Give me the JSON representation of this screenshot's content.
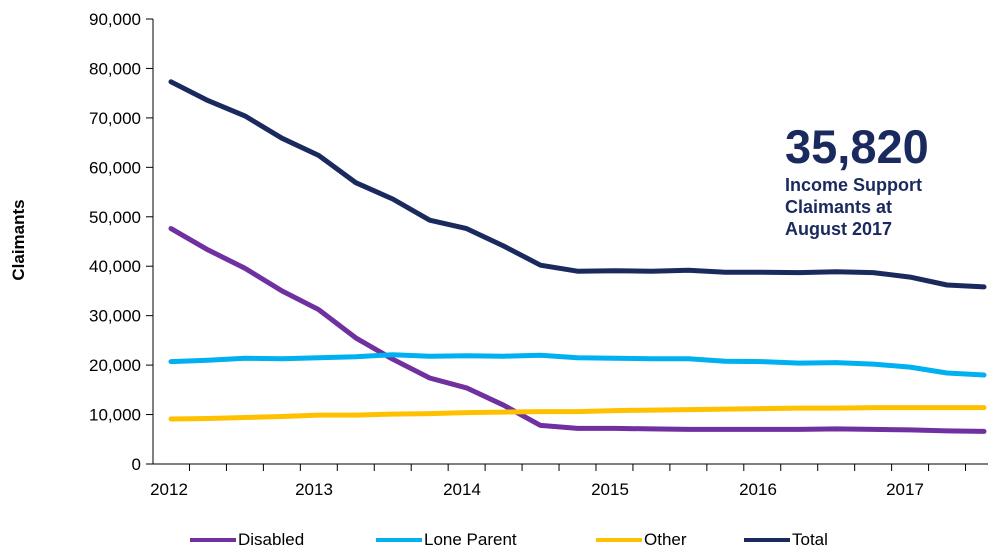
{
  "chart_data": {
    "type": "line",
    "ylabel": "Claimants",
    "xlabel": "",
    "ylim": [
      0,
      90000
    ],
    "y_ticks": [
      "0",
      "10,000",
      "20,000",
      "30,000",
      "40,000",
      "50,000",
      "60,000",
      "70,000",
      "80,000",
      "90,000"
    ],
    "y_tick_values": [
      0,
      10000,
      20000,
      30000,
      40000,
      50000,
      60000,
      70000,
      80000,
      90000
    ],
    "x_tick_labels": [
      "2012",
      "2013",
      "2014",
      "2015",
      "2016",
      "2017"
    ],
    "x": [
      "2012 Feb",
      "2012 May",
      "2012 Aug",
      "2012 Nov",
      "2013 Feb",
      "2013 May",
      "2013 Aug",
      "2013 Nov",
      "2014 Feb",
      "2014 May",
      "2014 Aug",
      "2014 Nov",
      "2015 Feb",
      "2015 May",
      "2015 Aug",
      "2015 Nov",
      "2016 Feb",
      "2016 May",
      "2016 Aug",
      "2016 Nov",
      "2017 Feb",
      "2017 May",
      "2017 Aug"
    ],
    "series": [
      {
        "name": "Disabled",
        "color": "#7030a0",
        "values": [
          47600,
          43300,
          39600,
          35000,
          31200,
          25500,
          21200,
          17400,
          15400,
          11900,
          7800,
          7200,
          7200,
          7100,
          7000,
          7000,
          7000,
          7000,
          7100,
          7000,
          6900,
          6700,
          6600
        ]
      },
      {
        "name": "Lone Parent",
        "color": "#00b0f0",
        "values": [
          20700,
          21000,
          21400,
          21300,
          21500,
          21700,
          22100,
          21800,
          21900,
          21800,
          22000,
          21500,
          21400,
          21300,
          21300,
          20800,
          20700,
          20400,
          20500,
          20200,
          19600,
          18400,
          18000
        ]
      },
      {
        "name": "Other",
        "color": "#ffc000",
        "values": [
          9100,
          9200,
          9400,
          9600,
          9900,
          9900,
          10100,
          10200,
          10400,
          10500,
          10600,
          10600,
          10800,
          10900,
          11000,
          11100,
          11200,
          11300,
          11300,
          11400,
          11400,
          11400,
          11400
        ]
      },
      {
        "name": "Total",
        "color": "#1b2a5e",
        "values": [
          77300,
          73500,
          70400,
          65900,
          62400,
          56900,
          53600,
          49300,
          47600,
          44100,
          40200,
          39000,
          39100,
          39000,
          39200,
          38800,
          38800,
          38700,
          38900,
          38700,
          37800,
          36200,
          35820
        ]
      }
    ],
    "legend_position": "bottom",
    "grid": false,
    "annotation": {
      "value": "35,820",
      "lines": [
        "Income Support",
        "Claimants at",
        "August 2017"
      ]
    }
  }
}
